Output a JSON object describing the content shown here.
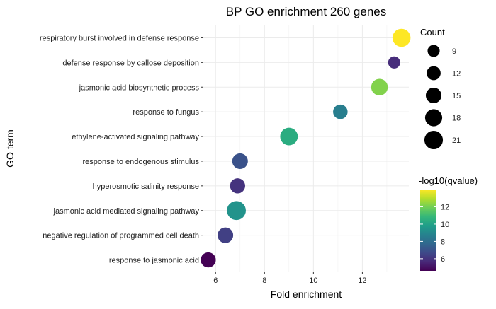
{
  "chart_data": {
    "type": "scatter",
    "title": "BP GO enrichment 260 genes",
    "xlabel": "Fold enrichment",
    "ylabel": "GO term",
    "xlim": [
      5.5,
      13.9
    ],
    "xticks": [
      6,
      8,
      10,
      12
    ],
    "grid": true,
    "legend_position": "right",
    "categories": [
      "respiratory burst involved in defense response",
      "defense response by callose deposition",
      "jasmonic acid biosynthetic process",
      "response to fungus",
      "ethylene-activated signaling pathway",
      "response to endogenous stimulus",
      "hyperosmotic salinity response",
      "jasmonic acid mediated signaling pathway",
      "negative regulation of programmed cell death",
      "response to jasmonic acid"
    ],
    "points": [
      {
        "term": "respiratory burst involved in defense response",
        "fold_enrichment": 13.6,
        "count": 20,
        "neg_log10_q": 14.0
      },
      {
        "term": "defense response by callose deposition",
        "fold_enrichment": 13.3,
        "count": 9,
        "neg_log10_q": 5.8
      },
      {
        "term": "jasmonic acid biosynthetic process",
        "fold_enrichment": 12.7,
        "count": 17,
        "neg_log10_q": 12.2
      },
      {
        "term": "response to fungus",
        "fold_enrichment": 11.1,
        "count": 13,
        "neg_log10_q": 8.6
      },
      {
        "term": "ethylene-activated signaling pathway",
        "fold_enrichment": 9.0,
        "count": 19,
        "neg_log10_q": 10.4
      },
      {
        "term": "response to endogenous stimulus",
        "fold_enrichment": 7.0,
        "count": 15,
        "neg_log10_q": 7.0
      },
      {
        "term": "hyperosmotic salinity response",
        "fold_enrichment": 6.9,
        "count": 14,
        "neg_log10_q": 6.0
      },
      {
        "term": "jasmonic acid mediated signaling pathway",
        "fold_enrichment": 6.85,
        "count": 22,
        "neg_log10_q": 9.4
      },
      {
        "term": "negative regulation of programmed cell death",
        "fold_enrichment": 6.4,
        "count": 15,
        "neg_log10_q": 6.4
      },
      {
        "term": "response to jasmonic acid",
        "fold_enrichment": 5.7,
        "count": 14,
        "neg_log10_q": 4.6
      }
    ],
    "size_legend": {
      "title": "Count",
      "values": [
        9,
        12,
        15,
        18,
        21
      ]
    },
    "color_legend": {
      "title": "-log10(qvalue)",
      "min": 4.6,
      "max": 14.0,
      "ticks": [
        6,
        8,
        10,
        12
      ],
      "colormap": "viridis"
    }
  }
}
